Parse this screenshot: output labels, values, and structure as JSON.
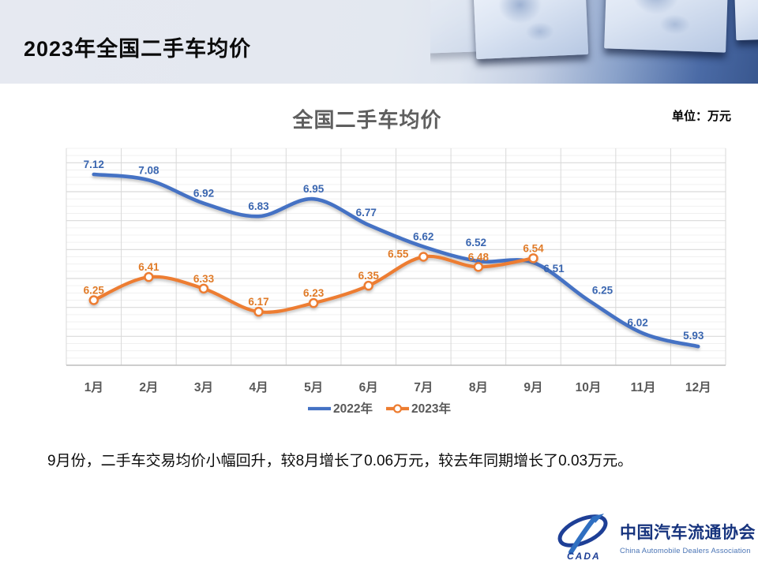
{
  "header": {
    "title": "2023年全国二手车均价"
  },
  "chart": {
    "title": "全国二手车均价",
    "unit_label": "单位：万元"
  },
  "chart_data": {
    "type": "line",
    "title": "全国二手车均价",
    "unit": "万元",
    "categories": [
      "1月",
      "2月",
      "3月",
      "4月",
      "5月",
      "6月",
      "7月",
      "8月",
      "9月",
      "10月",
      "11月",
      "12月"
    ],
    "series": [
      {
        "name": "2022年",
        "color": "#4472C4",
        "label_color": "#3A66B0",
        "smooth": true,
        "marker": "none",
        "values": [
          7.12,
          7.08,
          6.92,
          6.83,
          6.95,
          6.77,
          6.62,
          6.52,
          6.51,
          6.25,
          6.02,
          5.93
        ]
      },
      {
        "name": "2023年",
        "color": "#ED7D31",
        "label_color": "#E07B28",
        "smooth": true,
        "marker": "open-circle",
        "values": [
          6.25,
          6.41,
          6.33,
          6.17,
          6.23,
          6.35,
          6.55,
          6.48,
          6.54
        ]
      }
    ],
    "ylim": [
      5.8,
      7.3
    ],
    "y_minor_step": 0.05,
    "y_major_step": 0.2,
    "grid": true,
    "data_labels": true,
    "legend_position": "bottom"
  },
  "summary_text": "9月份，二手车交易均价小幅回升，较8月增长了0.06万元，较去年同期增长了0.03万元。",
  "logo": {
    "acronym": "CADA",
    "name_zh": "中国汽车流通协会",
    "name_en": "China Automobile Dealers Association"
  },
  "colors": {
    "grid_major": "#D9D9D9",
    "grid_minor": "#F0F0F0",
    "axis_line": "#BFBFBF",
    "axis_text": "#595959",
    "title_text": "#5F5F5F"
  }
}
